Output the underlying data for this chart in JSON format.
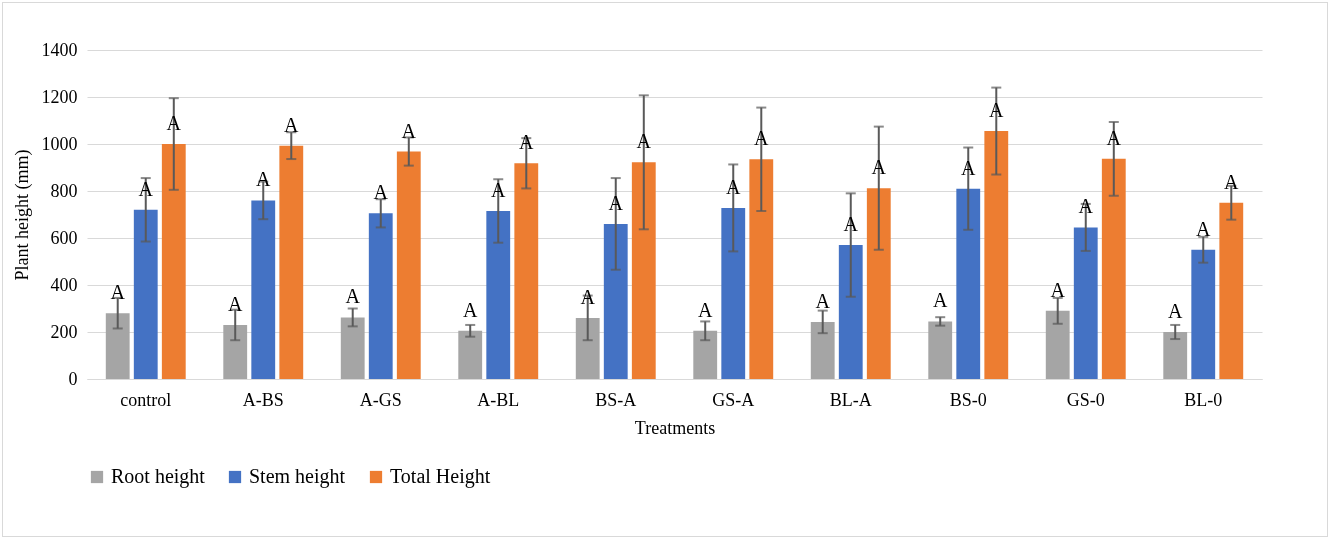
{
  "chart_data": {
    "type": "bar",
    "xlabel": "Treatments",
    "ylabel": "Plant height (mm)",
    "categories": [
      "control",
      "A-BS",
      "A-GS",
      "A-BL",
      "BS-A",
      "GS-A",
      "BL-A",
      "BS-0",
      "GS-0",
      "BL-0"
    ],
    "series": [
      {
        "name": "Root height",
        "color": "#a5a5a5",
        "values": [
          280,
          230,
          262,
          205,
          260,
          205,
          243,
          245,
          290,
          200
        ],
        "errors": [
          65,
          65,
          38,
          25,
          95,
          40,
          48,
          18,
          55,
          30
        ],
        "value_labels": [
          "A",
          "A",
          "A",
          "A",
          "A",
          "A",
          "A",
          "A",
          "A",
          "A"
        ]
      },
      {
        "name": "Stem height",
        "color": "#4472c4",
        "values": [
          720,
          760,
          705,
          715,
          660,
          728,
          570,
          810,
          645,
          550
        ],
        "errors": [
          135,
          80,
          60,
          135,
          195,
          185,
          220,
          175,
          100,
          55
        ],
        "value_labels": [
          "A",
          "A",
          "A",
          "A",
          "A",
          "A",
          "A",
          "A",
          "A",
          "A"
        ]
      },
      {
        "name": "Total Height",
        "color": "#ed7d31",
        "values": [
          1000,
          993,
          968,
          918,
          922,
          935,
          812,
          1055,
          937,
          750
        ],
        "errors": [
          195,
          57,
          60,
          107,
          285,
          220,
          262,
          185,
          157,
          72
        ],
        "value_labels": [
          "A",
          "A",
          "A",
          "A",
          "A",
          "A",
          "A",
          "A",
          "A",
          "A"
        ]
      }
    ],
    "ylim": [
      0,
      1400
    ],
    "yticks": [
      0,
      200,
      400,
      600,
      800,
      1000,
      1200,
      1400
    ],
    "grid": "y",
    "legend": "bottom"
  }
}
